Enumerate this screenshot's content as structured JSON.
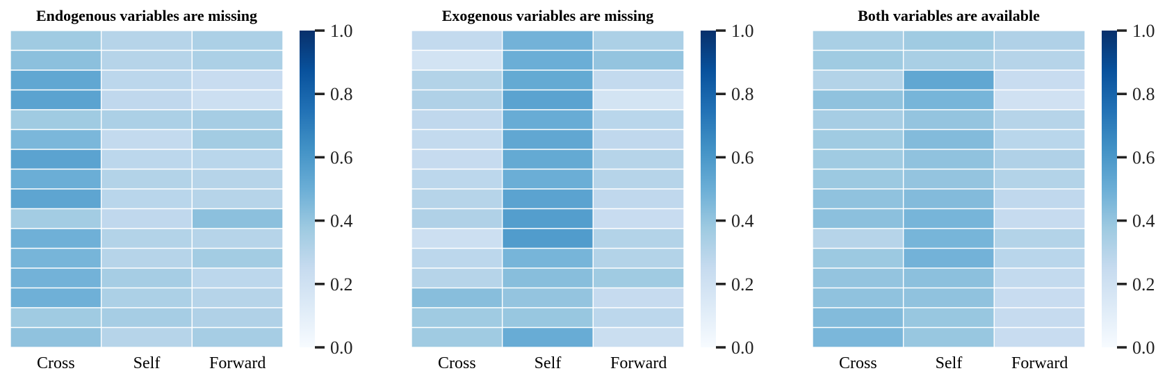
{
  "chart_data": [
    {
      "type": "heatmap",
      "title": "Endogenous variables are missing",
      "x_tick_labels": [
        "Cross",
        "Self",
        "Forward"
      ],
      "values": [
        [
          0.37,
          0.3,
          0.33
        ],
        [
          0.42,
          0.3,
          0.33
        ],
        [
          0.53,
          0.28,
          0.24
        ],
        [
          0.55,
          0.27,
          0.22
        ],
        [
          0.37,
          0.33,
          0.35
        ],
        [
          0.46,
          0.26,
          0.36
        ],
        [
          0.55,
          0.28,
          0.29
        ],
        [
          0.5,
          0.31,
          0.3
        ],
        [
          0.54,
          0.29,
          0.3
        ],
        [
          0.36,
          0.27,
          0.42
        ],
        [
          0.49,
          0.31,
          0.3
        ],
        [
          0.47,
          0.3,
          0.36
        ],
        [
          0.48,
          0.35,
          0.28
        ],
        [
          0.49,
          0.33,
          0.3
        ],
        [
          0.37,
          0.35,
          0.32
        ],
        [
          0.41,
          0.3,
          0.35
        ]
      ],
      "colorbar": {
        "min": 0.0,
        "max": 1.0,
        "ticks": [
          "0.0",
          "0.2",
          "0.4",
          "0.6",
          "0.8",
          "1.0"
        ]
      }
    },
    {
      "type": "heatmap",
      "title": "Exogenous variables are missing",
      "x_tick_labels": [
        "Cross",
        "Self",
        "Forward"
      ],
      "values": [
        [
          0.26,
          0.48,
          0.33
        ],
        [
          0.19,
          0.5,
          0.4
        ],
        [
          0.31,
          0.52,
          0.26
        ],
        [
          0.32,
          0.55,
          0.18
        ],
        [
          0.27,
          0.51,
          0.29
        ],
        [
          0.26,
          0.53,
          0.27
        ],
        [
          0.25,
          0.52,
          0.3
        ],
        [
          0.28,
          0.5,
          0.3
        ],
        [
          0.3,
          0.55,
          0.27
        ],
        [
          0.32,
          0.57,
          0.24
        ],
        [
          0.22,
          0.58,
          0.31
        ],
        [
          0.28,
          0.47,
          0.31
        ],
        [
          0.3,
          0.43,
          0.37
        ],
        [
          0.43,
          0.4,
          0.25
        ],
        [
          0.37,
          0.39,
          0.28
        ],
        [
          0.37,
          0.51,
          0.23
        ]
      ],
      "colorbar": {
        "min": 0.0,
        "max": 1.0,
        "ticks": [
          "0.0",
          "0.2",
          "0.4",
          "0.6",
          "0.8",
          "1.0"
        ]
      }
    },
    {
      "type": "heatmap",
      "title": "Both variables are available",
      "x_tick_labels": [
        "Cross",
        "Self",
        "Forward"
      ],
      "values": [
        [
          0.34,
          0.37,
          0.32
        ],
        [
          0.37,
          0.34,
          0.3
        ],
        [
          0.31,
          0.53,
          0.24
        ],
        [
          0.41,
          0.47,
          0.2
        ],
        [
          0.35,
          0.4,
          0.3
        ],
        [
          0.37,
          0.44,
          0.29
        ],
        [
          0.37,
          0.41,
          0.32
        ],
        [
          0.38,
          0.4,
          0.31
        ],
        [
          0.41,
          0.44,
          0.27
        ],
        [
          0.42,
          0.47,
          0.25
        ],
        [
          0.3,
          0.47,
          0.31
        ],
        [
          0.38,
          0.48,
          0.29
        ],
        [
          0.4,
          0.42,
          0.26
        ],
        [
          0.41,
          0.41,
          0.24
        ],
        [
          0.44,
          0.39,
          0.25
        ],
        [
          0.46,
          0.39,
          0.24
        ]
      ],
      "colorbar": {
        "min": 0.0,
        "max": 1.0,
        "ticks": [
          "0.0",
          "0.2",
          "0.4",
          "0.6",
          "0.8",
          "1.0"
        ]
      }
    }
  ],
  "colormap": [
    "#f7fbff",
    "#deebf7",
    "#c6dbef",
    "#9ecae1",
    "#6baed6",
    "#4292c6",
    "#2171b5",
    "#08519c",
    "#08306b"
  ]
}
